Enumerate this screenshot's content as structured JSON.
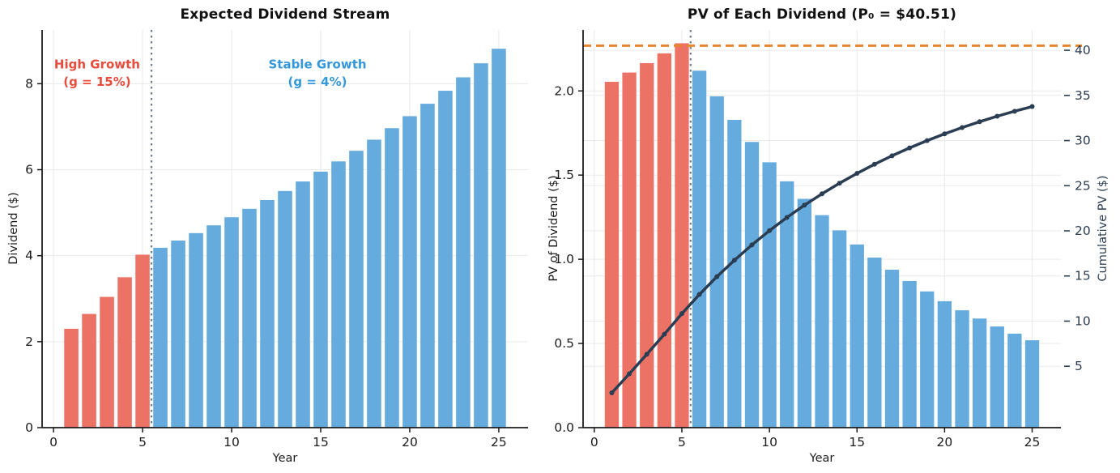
{
  "chart_data": [
    {
      "type": "bar",
      "title": "Expected Dividend Stream",
      "xlabel": "Year",
      "ylabel": "Dividend ($)",
      "x": [
        1,
        2,
        3,
        4,
        5,
        6,
        7,
        8,
        9,
        10,
        11,
        12,
        13,
        14,
        15,
        16,
        17,
        18,
        19,
        20,
        21,
        22,
        23,
        24,
        25
      ],
      "values": [
        2.3,
        2.645,
        3.042,
        3.498,
        4.023,
        4.184,
        4.351,
        4.525,
        4.706,
        4.894,
        5.09,
        5.294,
        5.505,
        5.726,
        5.955,
        6.193,
        6.44,
        6.698,
        6.966,
        7.245,
        7.534,
        7.836,
        8.149,
        8.475,
        8.814
      ],
      "high_growth_last_year": 5,
      "bar_colors": {
        "high_growth": "#ec7266",
        "stable_growth": "#66abde"
      },
      "bar_width": 0.8,
      "xlim": [
        -0.64,
        26.64
      ],
      "ylim": [
        0,
        9.25
      ],
      "xticks": {
        "values": [
          0,
          5,
          10,
          15,
          20,
          25
        ],
        "labels": [
          "0",
          "5",
          "10",
          "15",
          "20",
          "25"
        ]
      },
      "yticks": {
        "values": [
          0,
          2,
          4,
          6,
          8
        ],
        "labels": [
          "0",
          "2",
          "4",
          "6",
          "8"
        ]
      },
      "divider_x": 5.5,
      "divider_color": "#707a87",
      "grid_color": "#e9e9e9",
      "annotations": [
        {
          "lines": [
            "High Growth",
            "(g = 15%)"
          ],
          "color": "#e74c3c",
          "x": 2.45,
          "y": [
            8.45,
            8.04
          ]
        },
        {
          "lines": [
            "Stable Growth",
            "(g = 4%)"
          ],
          "color": "#3498db",
          "x": 14.82,
          "y": [
            8.45,
            8.04
          ]
        }
      ]
    },
    {
      "type": "bar+line",
      "title": "PV of Each Dividend (P₀ = $40.51)",
      "xlabel": "Year",
      "ylabel_left": "PV of Dividend ($)",
      "ylabel_right": "Cumulative PV ($)",
      "x": [
        1,
        2,
        3,
        4,
        5,
        6,
        7,
        8,
        9,
        10,
        11,
        12,
        13,
        14,
        15,
        16,
        17,
        18,
        19,
        20,
        21,
        22,
        23,
        24,
        25
      ],
      "bar_values": [
        2.054,
        2.109,
        2.165,
        2.223,
        2.283,
        2.12,
        1.968,
        1.828,
        1.697,
        1.576,
        1.463,
        1.359,
        1.262,
        1.172,
        1.088,
        1.01,
        0.938,
        0.871,
        0.809,
        0.751,
        0.697,
        0.648,
        0.601,
        0.558,
        0.519
      ],
      "line": {
        "name": "Cumulative PV",
        "axis": "right",
        "color": "#2b3d52",
        "values": [
          2.054,
          4.162,
          6.327,
          8.55,
          10.833,
          12.953,
          14.921,
          16.748,
          18.446,
          20.022,
          21.485,
          22.844,
          24.105,
          25.277,
          26.365,
          27.375,
          28.313,
          29.184,
          29.993,
          30.744,
          31.442,
          32.089,
          32.691,
          33.249,
          33.767
        ]
      },
      "hline": {
        "value": 40.51,
        "axis": "right",
        "color": "#e6862d",
        "style": "dashed"
      },
      "high_growth_last_year": 5,
      "bar_colors": {
        "high_growth": "#ec7266",
        "stable_growth": "#66abde"
      },
      "bar_width": 0.8,
      "xlim": [
        -0.64,
        26.64
      ],
      "ylim_left": [
        0,
        2.362
      ],
      "ylim_right": [
        -1.8,
        42.25
      ],
      "xticks": {
        "values": [
          0,
          5,
          10,
          15,
          20,
          25
        ],
        "labels": [
          "0",
          "5",
          "10",
          "15",
          "20",
          "25"
        ]
      },
      "yticks_left": {
        "values": [
          0,
          0.5,
          1.0,
          1.5,
          2.0
        ],
        "labels": [
          "0.0",
          "0.5",
          "1.0",
          "1.5",
          "2.0"
        ]
      },
      "yticks_right": {
        "values": [
          5,
          10,
          15,
          20,
          25,
          30,
          35,
          40
        ],
        "labels": [
          "5",
          "10",
          "15",
          "20",
          "25",
          "30",
          "35",
          "40"
        ]
      },
      "divider_x": 5.5,
      "divider_color": "#707a87",
      "grid_color": "#e9e9e9"
    }
  ]
}
